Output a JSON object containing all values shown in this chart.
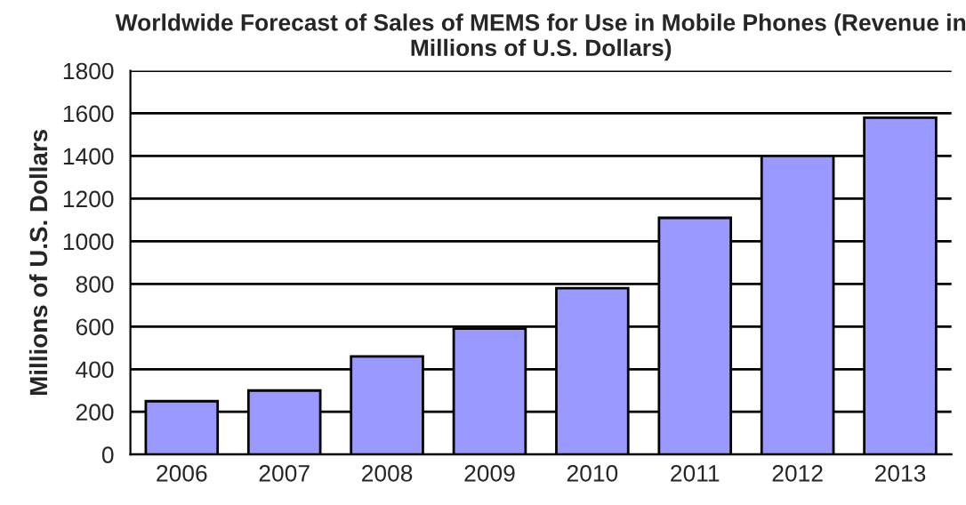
{
  "chart_data": {
    "type": "bar",
    "title": "Worldwide Forecast of Sales of MEMS for Use in Mobile Phones (Revenue in\nMillions of U.S. Dollars)",
    "ylabel": "Millions of U.S. Dollars",
    "categories": [
      "2006",
      "2007",
      "2008",
      "2009",
      "2010",
      "2011",
      "2012",
      "2013"
    ],
    "values": [
      250,
      300,
      460,
      590,
      780,
      1110,
      1400,
      1580
    ],
    "color": "#9999ff",
    "ylim": [
      0,
      1800
    ],
    "yticks": [
      0,
      200,
      400,
      600,
      800,
      1000,
      1200,
      1400,
      1600,
      1800
    ],
    "grid": "y"
  }
}
